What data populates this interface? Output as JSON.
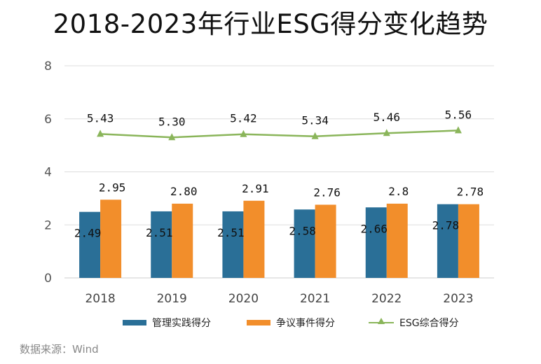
{
  "chart_data": {
    "type": "bar",
    "title": "2018-2023年行业ESG得分变化趋势",
    "categories": [
      "2018",
      "2019",
      "2020",
      "2021",
      "2022",
      "2023"
    ],
    "ylim": [
      0,
      8
    ],
    "yticks": [
      "0",
      "2",
      "4",
      "6",
      "8"
    ],
    "grid": true,
    "legend_position": "bottom",
    "series": [
      {
        "name": "管理实践得分",
        "type": "bar",
        "color": "#2a6f97",
        "values": [
          2.49,
          2.51,
          2.51,
          2.58,
          2.66,
          2.78
        ],
        "labels": [
          "2.49",
          "2.51",
          "2.51",
          "2.58",
          "2.66",
          "2.78"
        ]
      },
      {
        "name": "争议事件得分",
        "type": "bar",
        "color": "#f28e2b",
        "values": [
          2.95,
          2.8,
          2.91,
          2.76,
          2.8,
          2.78
        ],
        "labels": [
          "2.95",
          "2.80",
          "2.91",
          "2.76",
          "2.8",
          "2.78"
        ]
      },
      {
        "name": "ESG综合得分",
        "type": "line",
        "color": "#8ab55a",
        "values": [
          5.43,
          5.3,
          5.42,
          5.34,
          5.46,
          5.56
        ],
        "labels": [
          "5.43",
          "5.30",
          "5.42",
          "5.34",
          "5.46",
          "5.56"
        ]
      }
    ]
  },
  "source": "数据来源：Wind"
}
